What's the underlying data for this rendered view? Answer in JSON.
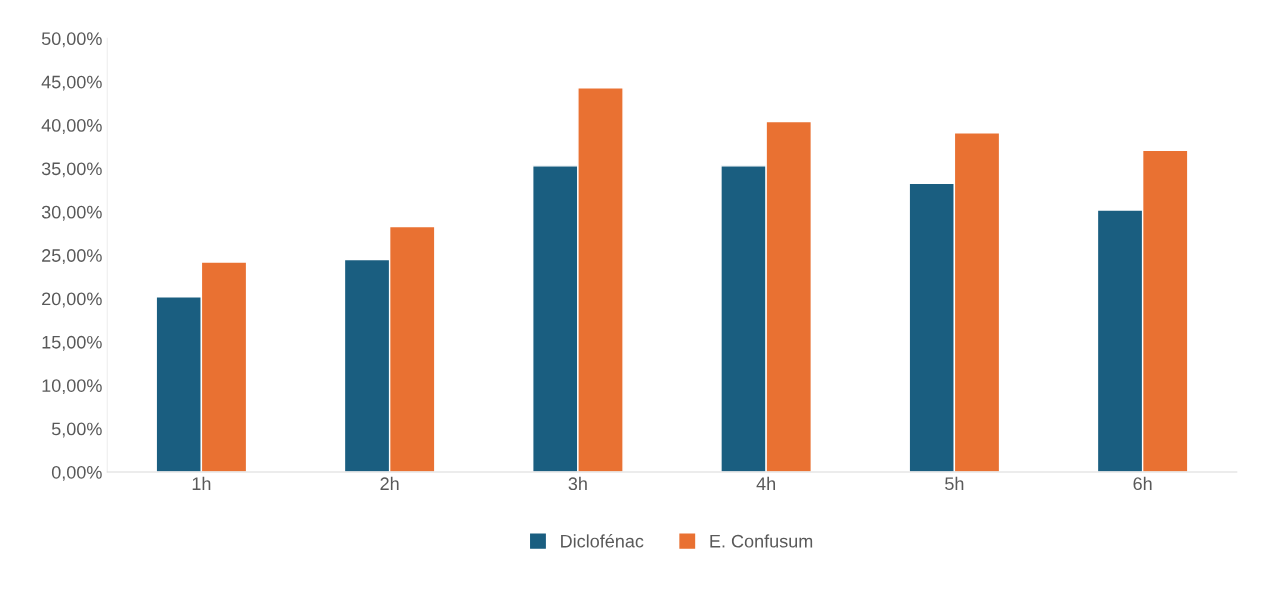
{
  "chart_data": {
    "type": "bar",
    "categories": [
      "1h",
      "2h",
      "3h",
      "4h",
      "5h",
      "6h"
    ],
    "series": [
      {
        "name": "Diclofénac",
        "color": "#1a5e80",
        "values": [
          20.2,
          24.5,
          35.3,
          35.3,
          33.3,
          30.2
        ]
      },
      {
        "name": "E. Confusum",
        "color": "#e97132",
        "values": [
          24.2,
          28.3,
          44.3,
          40.4,
          39.1,
          37.1
        ]
      }
    ],
    "ylim": [
      0,
      50
    ],
    "yticks": [
      {
        "value": 0,
        "label": "0,00%"
      },
      {
        "value": 5,
        "label": "5,00%"
      },
      {
        "value": 10,
        "label": "10,00%"
      },
      {
        "value": 15,
        "label": "15,00%"
      },
      {
        "value": 20,
        "label": "20,00%"
      },
      {
        "value": 25,
        "label": "25,00%"
      },
      {
        "value": 30,
        "label": "30,00%"
      },
      {
        "value": 35,
        "label": "35,00%"
      },
      {
        "value": 40,
        "label": "40,00%"
      },
      {
        "value": 45,
        "label": "45,00%"
      },
      {
        "value": 50,
        "label": "50,00%"
      }
    ],
    "grid": false,
    "legend": "bottom"
  }
}
